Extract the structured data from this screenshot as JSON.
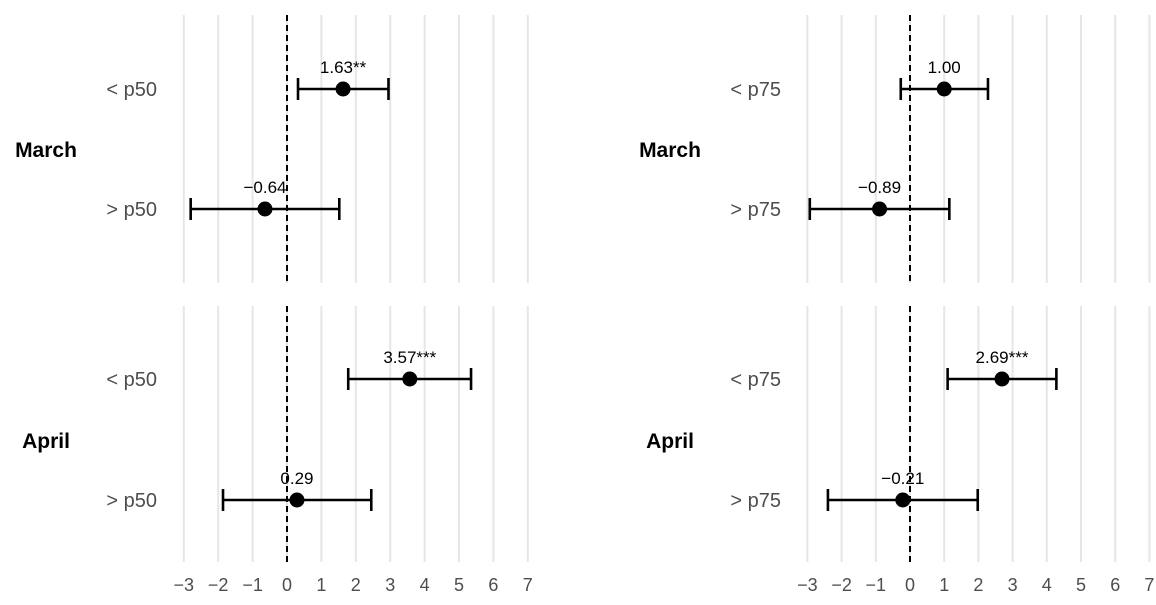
{
  "chart_data": [
    {
      "type": "forest",
      "x_ticks": [
        -3,
        -2,
        -1,
        0,
        1,
        2,
        3,
        4,
        5,
        6,
        7
      ],
      "tick_labels": [
        "−3",
        "−2",
        "−1",
        "0",
        "1",
        "2",
        "3",
        "4",
        "5",
        "6",
        "7"
      ],
      "xlim": [
        -3.3,
        7.3
      ],
      "reference_line": 0,
      "grid": true,
      "panels": [
        {
          "label": "March",
          "rows": [
            {
              "label": "< p50",
              "estimate": 1.63,
              "lower": 0.32,
              "upper": 2.95,
              "text": "1.63**"
            },
            {
              "label": "> p50",
              "estimate": -0.64,
              "lower": -2.8,
              "upper": 1.52,
              "text": "−0.64"
            }
          ]
        },
        {
          "label": "April",
          "rows": [
            {
              "label": "< p50",
              "estimate": 3.57,
              "lower": 1.78,
              "upper": 5.35,
              "text": "3.57***"
            },
            {
              "label": "> p50",
              "estimate": 0.29,
              "lower": -1.86,
              "upper": 2.45,
              "text": "0.29"
            }
          ]
        }
      ]
    },
    {
      "type": "forest",
      "x_ticks": [
        -3,
        -2,
        -1,
        0,
        1,
        2,
        3,
        4,
        5,
        6,
        7
      ],
      "tick_labels": [
        "−3",
        "−2",
        "−1",
        "0",
        "1",
        "2",
        "3",
        "4",
        "5",
        "6",
        "7"
      ],
      "xlim": [
        -3.3,
        7.3
      ],
      "reference_line": 0,
      "grid": true,
      "panels": [
        {
          "label": "March",
          "rows": [
            {
              "label": "< p75",
              "estimate": 1.0,
              "lower": -0.27,
              "upper": 2.28,
              "text": "1.00"
            },
            {
              "label": "> p75",
              "estimate": -0.89,
              "lower": -2.93,
              "upper": 1.15,
              "text": "−0.89"
            }
          ]
        },
        {
          "label": "April",
          "rows": [
            {
              "label": "< p75",
              "estimate": 2.69,
              "lower": 1.1,
              "upper": 4.28,
              "text": "2.69***"
            },
            {
              "label": "> p75",
              "estimate": -0.21,
              "lower": -2.4,
              "upper": 1.98,
              "text": "−0.21"
            }
          ]
        }
      ]
    }
  ]
}
